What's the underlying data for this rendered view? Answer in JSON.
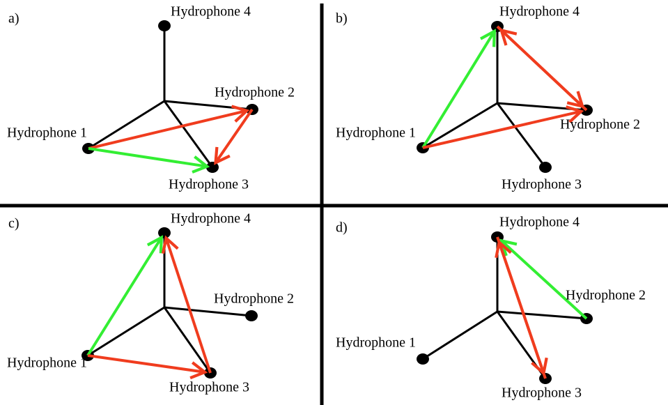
{
  "panels": [
    {
      "label": "a)",
      "nodes": [
        "Hydrophone 1",
        "Hydrophone 2",
        "Hydrophone 3",
        "Hydrophone 4"
      ]
    },
    {
      "label": "b)",
      "nodes": [
        "Hydrophone 1",
        "Hydrophone 2",
        "Hydrophone 3",
        "Hydrophone 4"
      ]
    },
    {
      "label": "c)",
      "nodes": [
        "Hydrophone 1",
        "Hydrophone 2",
        "Hydrophone 3",
        "Hydrophone 4"
      ]
    },
    {
      "label": "d)",
      "nodes": [
        "Hydrophone 1",
        "Hydrophone 2",
        "Hydrophone 3",
        "Hydrophone 4"
      ]
    }
  ]
}
